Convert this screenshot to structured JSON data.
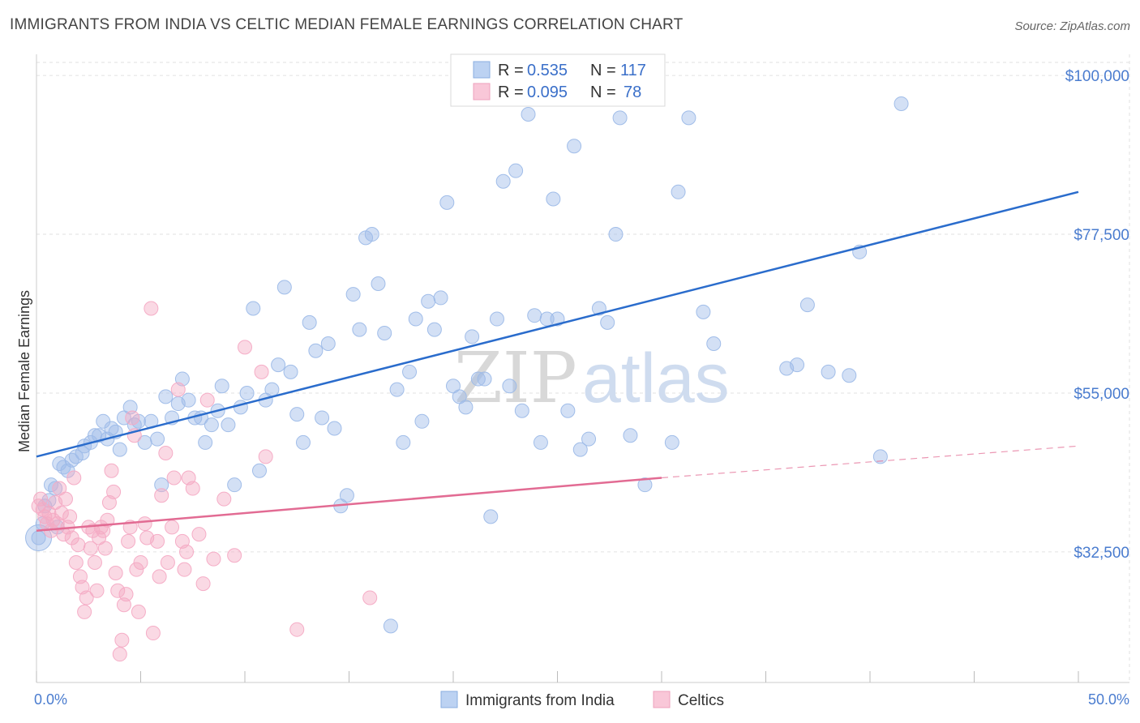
{
  "title": "IMMIGRANTS FROM INDIA VS CELTIC MEDIAN FEMALE EARNINGS CORRELATION CHART",
  "source": "Source: ZipAtlas.com",
  "watermark": {
    "zip": "ZIP",
    "atlas": "atlas"
  },
  "legend_top": {
    "rows": [
      {
        "r_label": "R = ",
        "r_value": "0.535",
        "n_label": "N = ",
        "n_value": "117"
      },
      {
        "r_label": "R = ",
        "r_value": "0.095",
        "n_label": "N = ",
        "n_value": "78"
      }
    ]
  },
  "chart_data": {
    "type": "scatter",
    "title": "IMMIGRANTS FROM INDIA VS CELTIC MEDIAN FEMALE EARNINGS CORRELATION CHART",
    "xlabel": "",
    "ylabel": "Median Female Earnings",
    "xlim": [
      0,
      50
    ],
    "ylim": [
      14000,
      103000
    ],
    "x_tick_labels": [
      "0.0%",
      "50.0%"
    ],
    "y_ticks": [
      32500,
      55000,
      77500,
      100000
    ],
    "y_tick_labels": [
      "$32,500",
      "$55,000",
      "$77,500",
      "$100,000"
    ],
    "grid": true,
    "legend_position": "bottom",
    "series": [
      {
        "name": "Immigrants from India",
        "color": "#9dbbe8",
        "line_color": "#2a6ccc",
        "trend": {
          "x": [
            0,
            50
          ],
          "y": [
            46000,
            83500
          ]
        },
        "points": [
          [
            0.1,
            34500
          ],
          [
            0.3,
            36500
          ],
          [
            0.4,
            39000
          ],
          [
            0.6,
            39800
          ],
          [
            0.7,
            42000
          ],
          [
            0.9,
            41500
          ],
          [
            1.0,
            36000
          ],
          [
            1.1,
            45000
          ],
          [
            1.3,
            44500
          ],
          [
            1.5,
            44000
          ],
          [
            1.7,
            45500
          ],
          [
            1.9,
            46000
          ],
          [
            2.2,
            46500
          ],
          [
            2.3,
            47500
          ],
          [
            2.6,
            48000
          ],
          [
            2.8,
            49000
          ],
          [
            3.0,
            49000
          ],
          [
            3.2,
            51000
          ],
          [
            3.4,
            48500
          ],
          [
            3.6,
            50000
          ],
          [
            3.8,
            49500
          ],
          [
            4.0,
            47000
          ],
          [
            4.2,
            51500
          ],
          [
            4.5,
            53000
          ],
          [
            4.7,
            50500
          ],
          [
            4.9,
            51000
          ],
          [
            5.2,
            48000
          ],
          [
            5.5,
            51000
          ],
          [
            5.8,
            48500
          ],
          [
            6.0,
            42000
          ],
          [
            6.2,
            54500
          ],
          [
            6.5,
            51500
          ],
          [
            6.8,
            53500
          ],
          [
            7.0,
            57000
          ],
          [
            7.3,
            54000
          ],
          [
            7.6,
            51500
          ],
          [
            7.9,
            51500
          ],
          [
            8.1,
            48000
          ],
          [
            8.4,
            50500
          ],
          [
            8.7,
            52500
          ],
          [
            8.9,
            56000
          ],
          [
            9.2,
            50500
          ],
          [
            9.5,
            42000
          ],
          [
            9.8,
            53000
          ],
          [
            10.1,
            55000
          ],
          [
            10.4,
            67000
          ],
          [
            10.7,
            44000
          ],
          [
            11.0,
            54000
          ],
          [
            11.3,
            55500
          ],
          [
            11.6,
            59000
          ],
          [
            11.9,
            70000
          ],
          [
            12.2,
            58000
          ],
          [
            12.5,
            52000
          ],
          [
            12.8,
            48000
          ],
          [
            13.1,
            65000
          ],
          [
            13.4,
            61000
          ],
          [
            13.7,
            51500
          ],
          [
            14.0,
            62000
          ],
          [
            14.3,
            50000
          ],
          [
            14.6,
            39000
          ],
          [
            14.9,
            40500
          ],
          [
            15.2,
            69000
          ],
          [
            15.5,
            64000
          ],
          [
            15.8,
            77000
          ],
          [
            16.1,
            77500
          ],
          [
            16.4,
            70500
          ],
          [
            16.7,
            63500
          ],
          [
            17.0,
            22000
          ],
          [
            17.3,
            55500
          ],
          [
            17.6,
            48000
          ],
          [
            17.9,
            58000
          ],
          [
            18.2,
            65500
          ],
          [
            18.5,
            51000
          ],
          [
            18.8,
            68000
          ],
          [
            19.1,
            64000
          ],
          [
            19.4,
            68500
          ],
          [
            19.7,
            82000
          ],
          [
            20.0,
            56000
          ],
          [
            20.3,
            54500
          ],
          [
            20.6,
            53000
          ],
          [
            20.9,
            63000
          ],
          [
            21.2,
            57000
          ],
          [
            21.5,
            57000
          ],
          [
            21.8,
            37500
          ],
          [
            22.1,
            65500
          ],
          [
            22.4,
            85000
          ],
          [
            22.7,
            56000
          ],
          [
            23.0,
            86500
          ],
          [
            23.3,
            52500
          ],
          [
            23.6,
            94500
          ],
          [
            23.9,
            66000
          ],
          [
            24.2,
            48000
          ],
          [
            24.5,
            65500
          ],
          [
            24.8,
            82500
          ],
          [
            25.0,
            65500
          ],
          [
            25.5,
            52500
          ],
          [
            25.8,
            90000
          ],
          [
            26.1,
            47000
          ],
          [
            26.5,
            48500
          ],
          [
            27.0,
            67000
          ],
          [
            27.4,
            65000
          ],
          [
            27.8,
            77500
          ],
          [
            28.0,
            94000
          ],
          [
            28.5,
            49000
          ],
          [
            29.2,
            42000
          ],
          [
            30.5,
            48000
          ],
          [
            30.8,
            83500
          ],
          [
            31.3,
            94000
          ],
          [
            32.0,
            66500
          ],
          [
            32.5,
            62000
          ],
          [
            36.0,
            58500
          ],
          [
            36.5,
            59000
          ],
          [
            37.0,
            67500
          ],
          [
            38.0,
            58000
          ],
          [
            39.0,
            57500
          ],
          [
            39.5,
            75000
          ],
          [
            40.5,
            46000
          ],
          [
            41.5,
            96000
          ]
        ]
      },
      {
        "name": "Celtics",
        "color": "#f4aac4",
        "line_color": "#e26b93",
        "trend": {
          "x": [
            0,
            30
          ],
          "y": [
            35500,
            43000
          ]
        },
        "trend_dashed": {
          "x": [
            30,
            50
          ],
          "y": [
            43000,
            47500
          ]
        },
        "points": [
          [
            0.1,
            39000
          ],
          [
            0.2,
            40000
          ],
          [
            0.3,
            38500
          ],
          [
            0.4,
            37500
          ],
          [
            0.5,
            36500
          ],
          [
            0.6,
            38000
          ],
          [
            0.7,
            35500
          ],
          [
            0.8,
            37000
          ],
          [
            0.9,
            39500
          ],
          [
            1.0,
            36500
          ],
          [
            1.1,
            41500
          ],
          [
            1.2,
            38000
          ],
          [
            1.3,
            35000
          ],
          [
            1.4,
            40000
          ],
          [
            1.5,
            36000
          ],
          [
            1.6,
            37500
          ],
          [
            1.7,
            34500
          ],
          [
            1.8,
            43000
          ],
          [
            1.9,
            31000
          ],
          [
            2.0,
            33500
          ],
          [
            2.1,
            29000
          ],
          [
            2.2,
            27500
          ],
          [
            2.3,
            24000
          ],
          [
            2.4,
            26000
          ],
          [
            2.5,
            36000
          ],
          [
            2.6,
            33000
          ],
          [
            2.7,
            35500
          ],
          [
            2.8,
            31000
          ],
          [
            2.9,
            27000
          ],
          [
            3.0,
            34500
          ],
          [
            3.1,
            36000
          ],
          [
            3.2,
            35500
          ],
          [
            3.3,
            33000
          ],
          [
            3.4,
            37000
          ],
          [
            3.5,
            39500
          ],
          [
            3.6,
            44000
          ],
          [
            3.7,
            41000
          ],
          [
            3.8,
            29500
          ],
          [
            3.9,
            27000
          ],
          [
            4.0,
            18000
          ],
          [
            4.1,
            20000
          ],
          [
            4.2,
            25000
          ],
          [
            4.3,
            26500
          ],
          [
            4.4,
            34000
          ],
          [
            4.5,
            36000
          ],
          [
            4.6,
            51500
          ],
          [
            4.7,
            49000
          ],
          [
            4.8,
            30000
          ],
          [
            4.9,
            24000
          ],
          [
            5.0,
            31000
          ],
          [
            5.2,
            36500
          ],
          [
            5.3,
            34500
          ],
          [
            5.5,
            67000
          ],
          [
            5.6,
            21000
          ],
          [
            5.8,
            34000
          ],
          [
            5.9,
            29000
          ],
          [
            6.0,
            40500
          ],
          [
            6.2,
            46500
          ],
          [
            6.3,
            31000
          ],
          [
            6.5,
            36000
          ],
          [
            6.6,
            43000
          ],
          [
            6.8,
            55500
          ],
          [
            7.0,
            34000
          ],
          [
            7.1,
            30000
          ],
          [
            7.2,
            32500
          ],
          [
            7.3,
            43000
          ],
          [
            7.5,
            41500
          ],
          [
            7.8,
            35000
          ],
          [
            8.0,
            28000
          ],
          [
            8.2,
            54000
          ],
          [
            8.5,
            31500
          ],
          [
            9.0,
            40000
          ],
          [
            9.5,
            32000
          ],
          [
            10.0,
            61500
          ],
          [
            10.8,
            58000
          ],
          [
            11.0,
            46000
          ],
          [
            12.5,
            21500
          ],
          [
            16.0,
            26000
          ]
        ]
      }
    ]
  },
  "bottom_legend": {
    "items": [
      {
        "label": "Immigrants from India",
        "color": "#9dbbe8"
      },
      {
        "label": "Celtics",
        "color": "#f4aac4"
      }
    ]
  }
}
